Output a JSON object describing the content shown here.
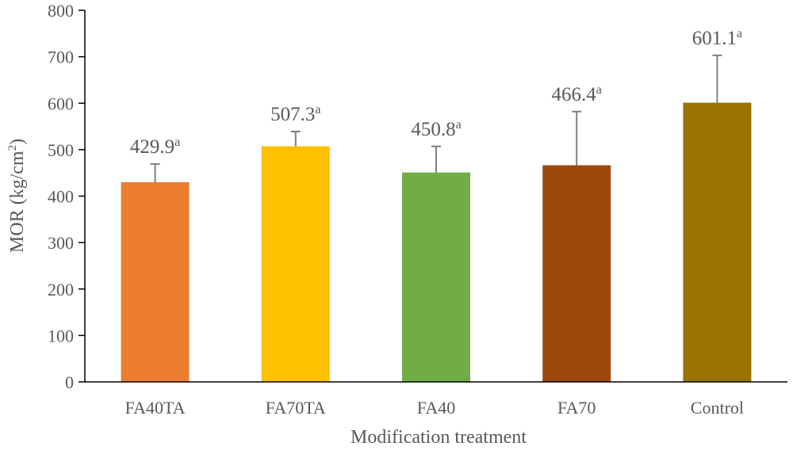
{
  "chart_data": {
    "type": "bar",
    "title": "",
    "xlabel": "Modification treatment",
    "ylabel": "MOR (kg/cm",
    "ylabel_sup": "2",
    "ylabel_close": ")",
    "ylim": [
      0,
      800
    ],
    "yticks": [
      0,
      100,
      200,
      300,
      400,
      500,
      600,
      700,
      800
    ],
    "grid": false,
    "legend": "none",
    "categories": [
      "FA40TA",
      "FA70TA",
      "FA40",
      "FA70",
      "Control"
    ],
    "values": [
      429.9,
      507.3,
      450.8,
      466.4,
      601.1
    ],
    "value_labels": [
      "429.9",
      "507.3",
      "450.8",
      "466.4",
      "601.1"
    ],
    "significance": [
      "a",
      "a",
      "a",
      "a",
      "a"
    ],
    "error_upper": [
      469,
      539,
      507,
      582,
      703
    ],
    "colors": [
      "#ED7D31",
      "#FFC000",
      "#70AD47",
      "#9E480E",
      "#997300"
    ]
  }
}
